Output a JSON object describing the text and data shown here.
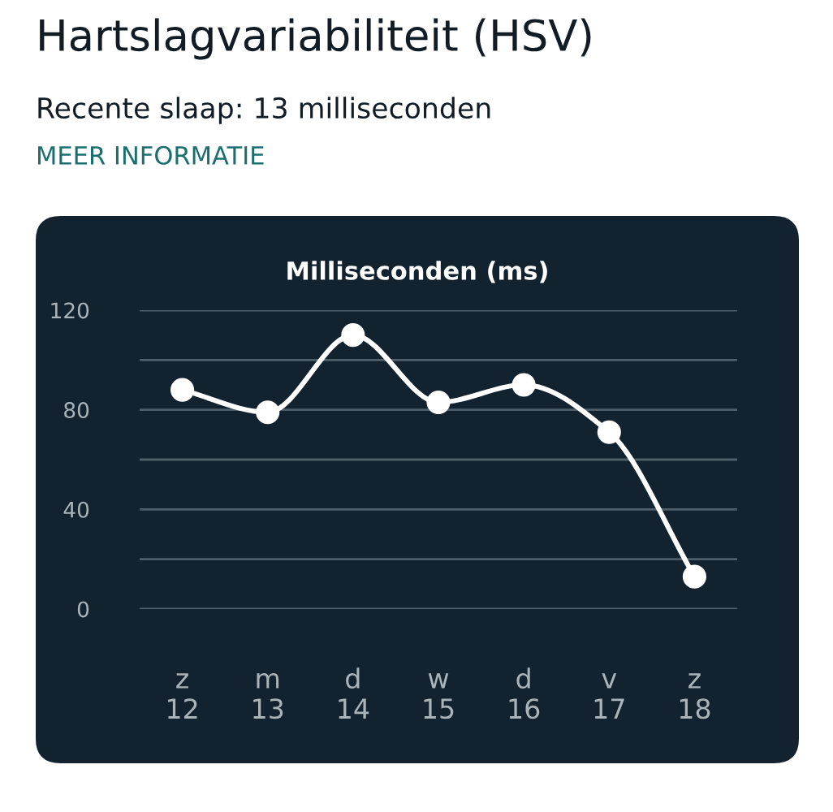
{
  "chart_data": {
    "type": "line",
    "title": "Hartslagvariabiliteit (HSV)",
    "subtitle": "Recente slaap: 13 milliseconden",
    "annotations": [
      "MEER INFORMATIE",
      "Milliseconden (ms)"
    ],
    "categories": [
      "z\n12",
      "m\n13",
      "d\n14",
      "w\n15",
      "d\n16",
      "v\n17",
      "z\n18"
    ],
    "series": [
      {
        "color": "#ffffff",
        "values": [
          88,
          79,
          110,
          83,
          90,
          71,
          13
        ]
      }
    ],
    "ylim": [
      0,
      120
    ],
    "yticks": [
      0,
      {
        "value": 20,
        "label": null
      },
      40,
      {
        "value": 60,
        "label": null
      },
      80,
      {
        "value": 100,
        "label": null
      },
      120
    ],
    "grid": "y",
    "marker": "circle",
    "line_style": "solid"
  }
}
